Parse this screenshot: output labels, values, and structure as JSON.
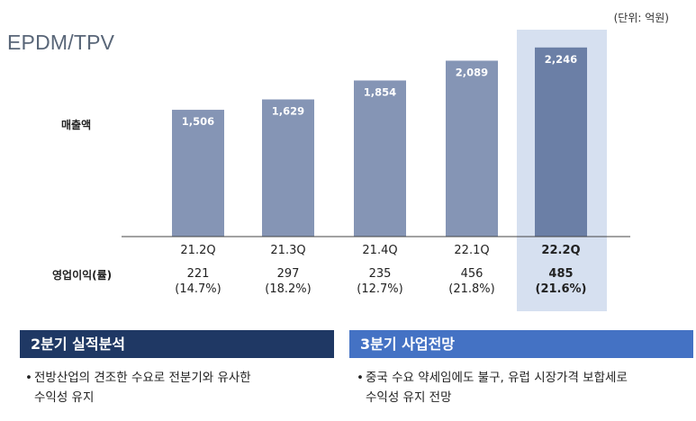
{
  "unit_label": "(단위: 억원)",
  "page_title": "EPDM/TPV",
  "row_labels": {
    "sales": "매출액",
    "op": "영업이익(률)"
  },
  "colors": {
    "bar": "#8595b5",
    "bar_highlight": "#6b7fa6",
    "highlight_bg": "#d6e0f0",
    "left_head": "#1f3864",
    "right_head": "#4472c4"
  },
  "chart_data": {
    "type": "bar",
    "categories": [
      "21.2Q",
      "21.3Q",
      "21.4Q",
      "22.1Q",
      "22.2Q"
    ],
    "values": [
      1506,
      1629,
      1854,
      2089,
      2246
    ],
    "value_labels": [
      "1,506",
      "1,629",
      "1,854",
      "2,089",
      "2,246"
    ],
    "highlight_index": 4,
    "operating_profit": [
      "221",
      "297",
      "235",
      "456",
      "485"
    ],
    "operating_margin": [
      "(14.7%)",
      "(18.2%)",
      "(12.7%)",
      "(21.8%)",
      "(21.6%)"
    ]
  },
  "sections": {
    "left": {
      "heading": "2분기 실적분석",
      "bullet": "•",
      "lines": [
        "전방산업의 견조한 수요로 전분기와 유사한",
        "수익성 유지"
      ]
    },
    "right": {
      "heading": "3분기 사업전망",
      "bullet": "•",
      "lines": [
        "중국 수요 약세임에도 불구, 유럽 시장가격 보합세로",
        "수익성 유지 전망"
      ]
    }
  }
}
